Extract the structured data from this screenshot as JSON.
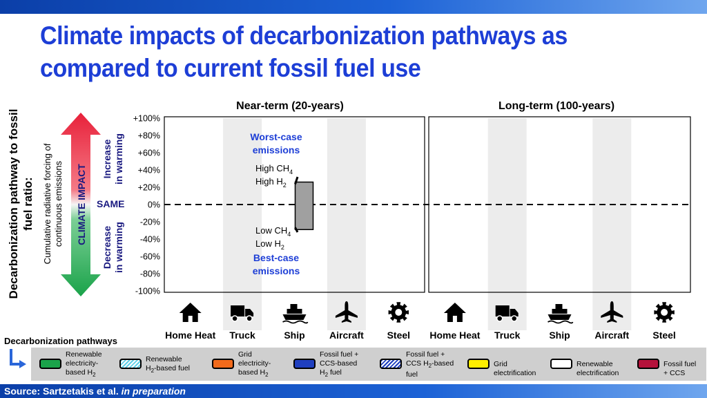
{
  "header": {
    "title_line1": "Climate impacts of decarbonization pathways as",
    "title_line2": "compared to current fossil fuel use"
  },
  "axes": {
    "ylabel_main_line1": "Decarbonization pathway to fossil",
    "ylabel_main_line2": "fuel ratio:",
    "ylabel_sub_line1": "Cumulative radiative forcing of",
    "ylabel_sub_line2": "continuous emissions",
    "climate_impact": "CLIMATE IMPACT",
    "increase_line1": "Increase",
    "increase_line2": "in warming",
    "decrease_line1": "Decrease",
    "decrease_line2": "in warming",
    "same": "SAME"
  },
  "panels": {
    "near_term": "Near-term (20-years)",
    "long_term": "Long-term (100-years)"
  },
  "colors": {
    "title": "#1d3ed6",
    "annotation_blue": "#1d3ed6",
    "bar_gray": "#a0a0a0",
    "arrow_red": "#e8213a",
    "arrow_green": "#1aa34a",
    "column_shade": "#ececec"
  },
  "chart_data": {
    "type": "bar",
    "y_tick_labels": [
      "+100%",
      "+80%",
      "+60%",
      "+40%",
      "+20%",
      "0%",
      "-20%",
      "-40%",
      "-60%",
      "-80%",
      "-100%"
    ],
    "ylim": [
      -100,
      100
    ],
    "reference_line": 0,
    "categories": [
      "Home Heat",
      "Truck",
      "Ship",
      "Aircraft",
      "Steel"
    ],
    "category_icons": [
      "house-icon",
      "truck-icon",
      "ship-icon",
      "aircraft-icon",
      "gear-icon"
    ],
    "panels": [
      "Near-term (20-years)",
      "Long-term (100-years)"
    ],
    "ranges": [
      {
        "panel": "Near-term (20-years)",
        "category": "Ship",
        "low": -29,
        "high": 26
      }
    ],
    "annotations": [
      {
        "text": "Worst-case",
        "text2": "emissions"
      },
      {
        "text": "Best-case",
        "text2": "emissions"
      }
    ],
    "range_labels": {
      "high_ch4": "High CH",
      "high_h2": "High H",
      "low_ch4": "Low CH",
      "low_h2": "Low H",
      "sub4": "4",
      "sub2": "2"
    }
  },
  "legend": {
    "title": "Decarbonization pathways",
    "items": [
      {
        "name": "legend-renewable-electricity-h2",
        "lines": [
          "Renewable",
          "electricity-",
          "based H"
        ],
        "sub": "2",
        "color": "#1aa34a",
        "pattern": "solid"
      },
      {
        "name": "legend-renewable-h2-fuel",
        "lines": [
          "Renewable",
          "H"
        ],
        "sub": "2",
        "tail": "-based fuel",
        "color": "#5fd1e8",
        "pattern": "hatch"
      },
      {
        "name": "legend-grid-electricity-h2",
        "lines": [
          "Grid",
          "electricity-",
          "based H"
        ],
        "sub": "2",
        "color": "#f26a1b",
        "pattern": "solid"
      },
      {
        "name": "legend-fossil-ccs-h2",
        "lines": [
          "Fossil fuel +",
          "CCS-based",
          "H"
        ],
        "sub": "2",
        "tail": " fuel",
        "color": "#1f3fbf",
        "pattern": "solid"
      },
      {
        "name": "legend-fossil-ccs-h2-fuel",
        "lines": [
          "Fossil fuel +",
          "CCS H",
          "fuel"
        ],
        "sub": "2",
        "mid_tail": "-based",
        "color": "#1f3fbf",
        "pattern": "hatch"
      },
      {
        "name": "legend-grid-electrification",
        "lines": [
          "Grid",
          "electrification"
        ],
        "color": "#ffee00",
        "pattern": "solid"
      },
      {
        "name": "legend-renewable-electrification",
        "lines": [
          "Renewable",
          "electrification"
        ],
        "color": "#ffffff",
        "pattern": "solid"
      },
      {
        "name": "legend-fossil-ccs",
        "lines": [
          "Fossil fuel",
          "+ CCS"
        ],
        "color": "#b5123b",
        "pattern": "solid"
      }
    ]
  },
  "footer": {
    "source_prefix": "Source: Sartzetakis et al.",
    "source_italic": "in preparation"
  }
}
